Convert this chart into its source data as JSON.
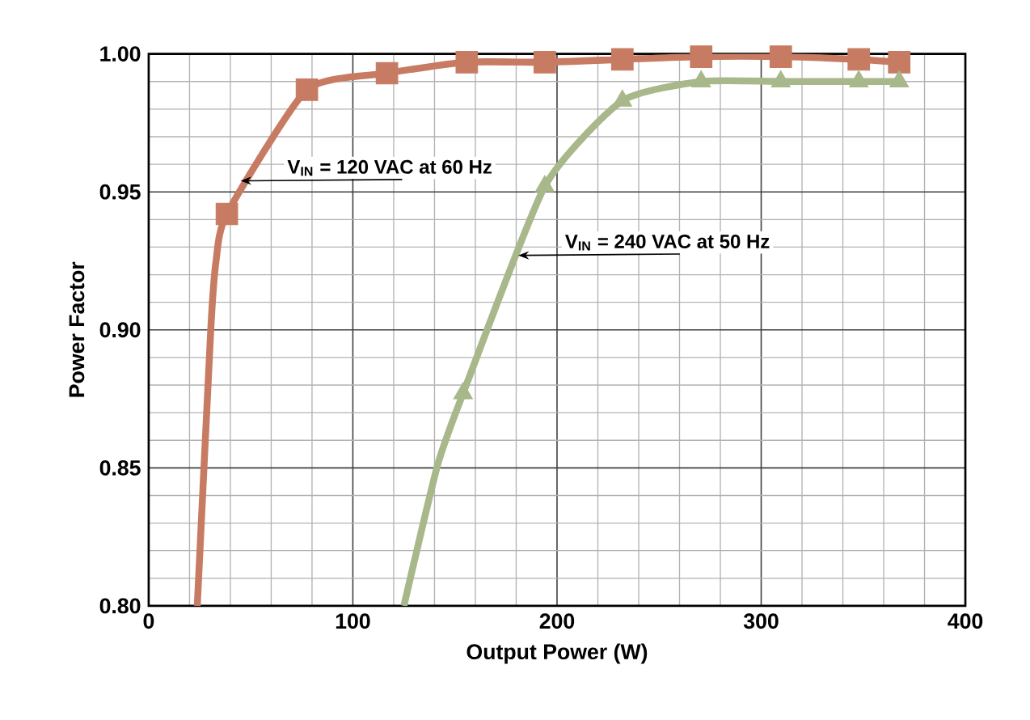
{
  "chart_data": {
    "type": "line",
    "xlabel": "Output Power (W)",
    "ylabel": "Power Factor",
    "xlim": [
      0,
      400
    ],
    "ylim": [
      0.8,
      1.0
    ],
    "xticks": [
      0,
      100,
      200,
      300,
      400
    ],
    "yticks": [
      {
        "value": 0.8,
        "label": "0.80"
      },
      {
        "value": 0.85,
        "label": "0.85"
      },
      {
        "value": 0.9,
        "label": "0.90"
      },
      {
        "value": 0.95,
        "label": "0.95"
      },
      {
        "value": 1.0,
        "label": "1.00"
      }
    ],
    "grid": true,
    "line_style": "solid",
    "series": [
      {
        "color": "#c87b63",
        "marker": "none",
        "x": [
          23.8,
          30.4,
          33,
          38.3,
          77.5,
          116.7,
          155.8,
          194,
          232,
          270.6,
          309.6,
          347.8,
          367.6
        ],
        "values": [
          0.8,
          0.9,
          0.925,
          0.942,
          0.987,
          0.993,
          0.997,
          0.997,
          0.998,
          0.999,
          0.999,
          0.998,
          0.997
        ]
      },
      {
        "type": "scatter",
        "color": "#c87b63",
        "marker": "square",
        "x": [
          38.3,
          77.5,
          116.7,
          155.8,
          194,
          232,
          270.6,
          309.6,
          347.8,
          367.6
        ],
        "values": [
          0.942,
          0.987,
          0.993,
          0.997,
          0.997,
          0.998,
          0.999,
          0.999,
          0.998,
          0.997
        ]
      },
      {
        "color": "#a8b88a",
        "marker": "none",
        "x": [
          125,
          141.5,
          154,
          194,
          232,
          270.6,
          309.6,
          347.8,
          367.6
        ],
        "values": [
          0.8,
          0.851,
          0.877,
          0.952,
          0.983,
          0.99,
          0.99,
          0.99,
          0.99
        ]
      },
      {
        "type": "scatter",
        "color": "#a8b88a",
        "marker": "triangle",
        "x": [
          154,
          194,
          232,
          270.6,
          309.6,
          347.8,
          367.6
        ],
        "values": [
          0.877,
          0.952,
          0.983,
          0.99,
          0.99,
          0.99,
          0.99
        ]
      }
    ],
    "annotations": [
      {
        "text": "V$_{IN}$ = 120 VAC at 60 Hz",
        "x": 45,
        "y": 0.954
      },
      {
        "text": "V$_{IN}$ = 240 VAC at 50 Hz",
        "x": 181,
        "y": 0.927
      }
    ]
  }
}
